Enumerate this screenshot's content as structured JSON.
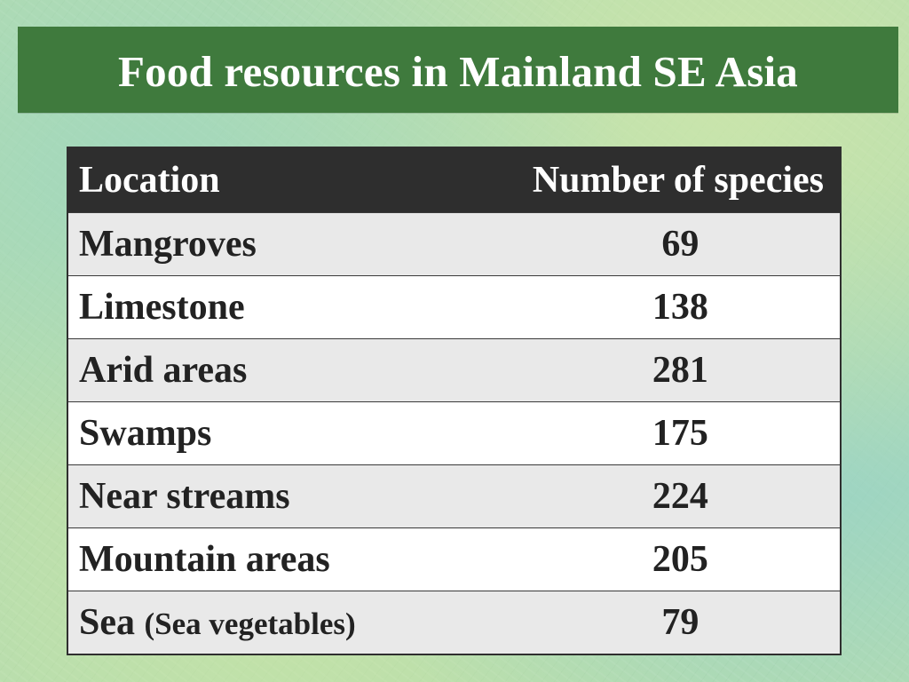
{
  "title": "Food resources in Mainland SE Asia",
  "colors": {
    "title_bar": "#3f7a3d",
    "header_row": "#2e2e2e",
    "row_shaded": "#e9e9e9",
    "row_plain": "#ffffff"
  },
  "table": {
    "headers": {
      "location": "Location",
      "species": "Number of species"
    },
    "rows": [
      {
        "location": "Mangroves",
        "note": "",
        "species": "69"
      },
      {
        "location": "Limestone",
        "note": "",
        "species": "138"
      },
      {
        "location": "Arid areas",
        "note": "",
        "species": "281"
      },
      {
        "location": "Swamps",
        "note": "",
        "species": "175"
      },
      {
        "location": "Near streams",
        "note": "",
        "species": "224"
      },
      {
        "location": "Mountain areas",
        "note": "",
        "species": "205"
      },
      {
        "location": "Sea",
        "note": "(Sea vegetables)",
        "species": "79"
      }
    ]
  }
}
